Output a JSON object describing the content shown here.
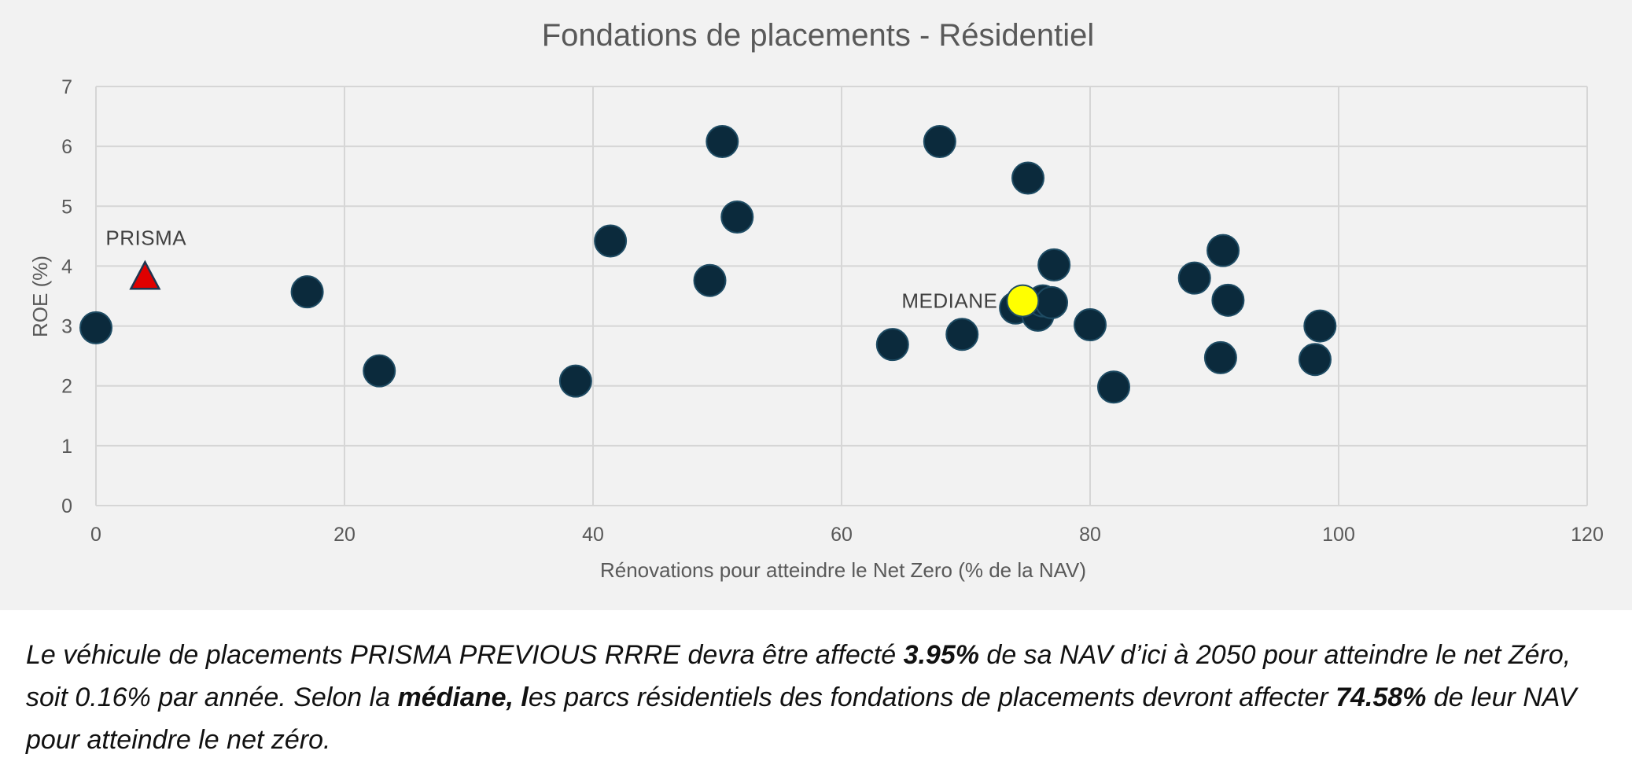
{
  "chart_data": {
    "type": "scatter",
    "title": "Fondations de placements - Résidentiel",
    "xlabel": "Rénovations pour atteindre le Net Zero (% de la NAV)",
    "ylabel": "ROE (%)",
    "xlim": [
      0,
      120
    ],
    "ylim": [
      0,
      7
    ],
    "xticks": [
      0,
      20,
      40,
      60,
      80,
      100,
      120
    ],
    "yticks": [
      0,
      1,
      2,
      3,
      4,
      5,
      6,
      7
    ],
    "grid": true,
    "series": [
      {
        "name": "Fondations de placements",
        "marker": "circle",
        "color": "#0b2a3c",
        "points": [
          {
            "x": 0,
            "y": 2.97
          },
          {
            "x": 17,
            "y": 3.57
          },
          {
            "x": 22.8,
            "y": 2.25
          },
          {
            "x": 38.6,
            "y": 2.08
          },
          {
            "x": 41.4,
            "y": 4.42
          },
          {
            "x": 49.4,
            "y": 3.76
          },
          {
            "x": 50.4,
            "y": 6.08
          },
          {
            "x": 51.6,
            "y": 4.82
          },
          {
            "x": 64.1,
            "y": 2.69
          },
          {
            "x": 67.9,
            "y": 6.08
          },
          {
            "x": 69.7,
            "y": 2.86
          },
          {
            "x": 74,
            "y": 3.3
          },
          {
            "x": 75,
            "y": 5.47
          },
          {
            "x": 75.8,
            "y": 3.18
          },
          {
            "x": 76.2,
            "y": 3.42
          },
          {
            "x": 76.9,
            "y": 3.39
          },
          {
            "x": 77.1,
            "y": 4.02
          },
          {
            "x": 80,
            "y": 3.02
          },
          {
            "x": 81.9,
            "y": 1.98
          },
          {
            "x": 88.4,
            "y": 3.8
          },
          {
            "x": 90.5,
            "y": 2.47
          },
          {
            "x": 90.7,
            "y": 4.26
          },
          {
            "x": 91.1,
            "y": 3.43
          },
          {
            "x": 98.1,
            "y": 2.44
          },
          {
            "x": 98.5,
            "y": 3.0
          }
        ]
      },
      {
        "name": "MEDIANE",
        "marker": "circle",
        "color": "#ffff00",
        "points": [
          {
            "x": 74.58,
            "y": 3.42
          }
        ]
      },
      {
        "name": "PRISMA",
        "marker": "triangle",
        "color": "#e00000",
        "points": [
          {
            "x": 3.95,
            "y": 3.8
          }
        ]
      }
    ],
    "annotations": [
      {
        "text": "PRISMA",
        "x": 3.95,
        "y": 3.8
      },
      {
        "text": "MEDIANE",
        "x": 74.58,
        "y": 3.42
      }
    ]
  },
  "caption": {
    "p1": "Le véhicule de placements PRISMA PREVIOUS RRRE devra être affecté ",
    "b1": "3.95%",
    "p2": " de sa NAV d’ici à 2050 pour atteindre le net Zéro, soit 0.16% par année. Selon la ",
    "b2": "médiane, l",
    "p3": "es parcs résidentiels des fondations de placements devront affecter ",
    "b3": "74.58%",
    "p4": " de leur NAV pour atteindre le net zéro."
  }
}
